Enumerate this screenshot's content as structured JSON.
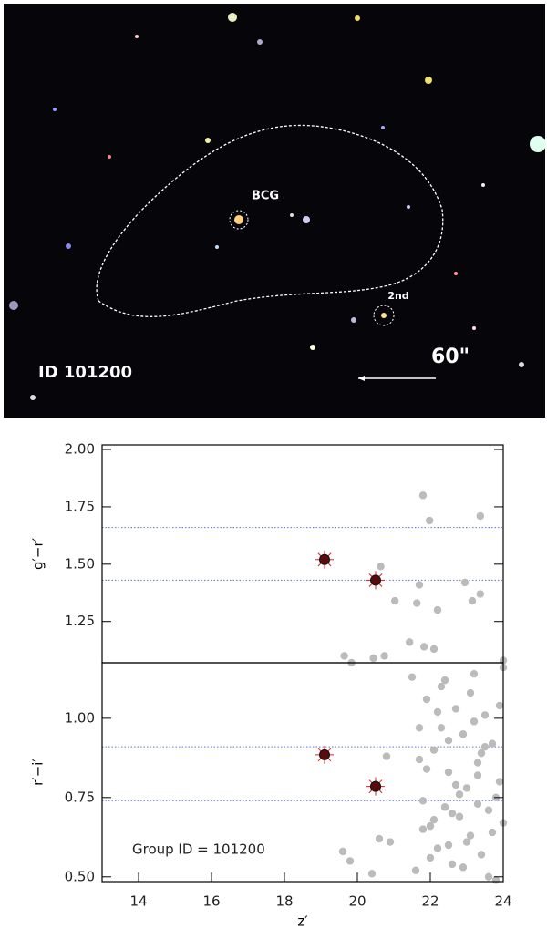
{
  "image": {
    "labels": {
      "bcg": "BCG",
      "second": "2nd",
      "scale": "60\"",
      "id": "ID 101200"
    }
  },
  "chart_data": [
    {
      "type": "scatter",
      "ylabel": "g′−r′",
      "xlim": [
        13,
        24
      ],
      "ylim": [
        1.07,
        2.02
      ],
      "yticks": [
        1.25,
        {
          "value": 1.5,
          "label": "1.50"
        },
        1.75,
        {
          "value": 2,
          "label": "2.00"
        }
      ],
      "hlines": [
        1.66,
        1.43
      ],
      "series": [
        {
          "color": "#bbbbbb",
          "x": [
            21.8,
            21.98,
            23.37,
            20.64,
            21.7,
            22.95,
            21.03,
            21.63,
            23.15,
            23.37,
            22.2,
            21.43,
            21.83,
            22.1,
            19.64,
            19.84,
            20.44,
            20.74,
            24.0
          ],
          "values": [
            1.8,
            1.69,
            1.71,
            1.49,
            1.41,
            1.42,
            1.34,
            1.33,
            1.34,
            1.37,
            1.3,
            1.16,
            1.14,
            1.13,
            1.1,
            1.07,
            1.09,
            1.1,
            1.08
          ]
        },
        {
          "color": "#e02020",
          "x": [
            19.1,
            20.5
          ],
          "values": [
            1.52,
            1.43
          ]
        }
      ]
    },
    {
      "type": "scatter",
      "ylabel": "r′−i′",
      "xlabel": "z′",
      "xlim": [
        13,
        24
      ],
      "ylim": [
        0.485,
        1.175
      ],
      "xticks": [
        14,
        16,
        18,
        20,
        22,
        24
      ],
      "yticks": [
        {
          "value": 0.5,
          "label": "0.50"
        },
        0.75,
        {
          "value": 1,
          "label": "1.00"
        }
      ],
      "hlines": [
        0.91,
        0.74
      ],
      "annotation": "Group ID = 101200",
      "series": [
        {
          "color": "#bbbbbb",
          "x": [
            19.6,
            19.8,
            20.4,
            20.6,
            20.8,
            20.9,
            21.5,
            21.7,
            21.8,
            21.9,
            22.0,
            22.1,
            22.2,
            22.3,
            22.4,
            22.5,
            22.6,
            22.7,
            22.8,
            22.9,
            23.0,
            23.1,
            23.2,
            23.3,
            23.4,
            23.5,
            23.6,
            23.7,
            23.8,
            23.9,
            24.0,
            21.6,
            21.9,
            22.1,
            22.3,
            22.5,
            22.7,
            22.9,
            23.1,
            23.3,
            23.5,
            23.7,
            23.9,
            21.7,
            22.0,
            22.4,
            22.8,
            23.2,
            23.6,
            24.0,
            22.2,
            22.6,
            23.0,
            23.4,
            23.8,
            21.8,
            22.5,
            23.3
          ],
          "values": [
            0.58,
            0.55,
            0.51,
            0.62,
            0.88,
            0.61,
            1.13,
            0.97,
            0.74,
            1.06,
            0.66,
            0.9,
            0.59,
            1.1,
            0.72,
            0.83,
            0.54,
            1.03,
            0.69,
            0.95,
            0.78,
            0.63,
            1.14,
            0.86,
            0.57,
            1.01,
            0.71,
            0.92,
            0.49,
            0.8,
            1.16,
            0.52,
            0.84,
            0.68,
            0.97,
            0.6,
            0.79,
            0.53,
            1.08,
            0.73,
            0.91,
            0.64,
            1.04,
            0.87,
            0.56,
            1.12,
            0.76,
            0.99,
            0.5,
            0.67,
            1.02,
            0.7,
            0.61,
            0.89,
            0.75,
            0.65,
            0.93,
            0.82
          ]
        },
        {
          "color": "#e02020",
          "x": [
            19.1,
            20.5
          ],
          "values": [
            0.885,
            0.785
          ]
        }
      ]
    }
  ]
}
